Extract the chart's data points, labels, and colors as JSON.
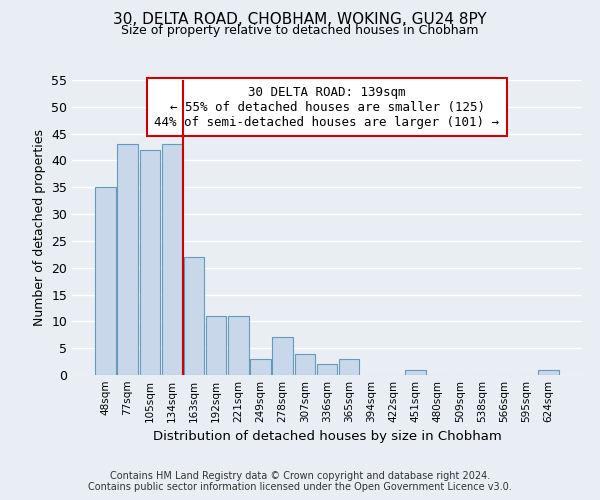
{
  "title": "30, DELTA ROAD, CHOBHAM, WOKING, GU24 8PY",
  "subtitle": "Size of property relative to detached houses in Chobham",
  "xlabel": "Distribution of detached houses by size in Chobham",
  "ylabel": "Number of detached properties",
  "bin_labels": [
    "48sqm",
    "77sqm",
    "105sqm",
    "134sqm",
    "163sqm",
    "192sqm",
    "221sqm",
    "249sqm",
    "278sqm",
    "307sqm",
    "336sqm",
    "365sqm",
    "394sqm",
    "422sqm",
    "451sqm",
    "480sqm",
    "509sqm",
    "538sqm",
    "566sqm",
    "595sqm",
    "624sqm"
  ],
  "bar_heights": [
    35,
    43,
    42,
    43,
    22,
    11,
    11,
    3,
    7,
    4,
    2,
    3,
    0,
    0,
    1,
    0,
    0,
    0,
    0,
    0,
    1
  ],
  "bar_color": "#c8d8ea",
  "bar_edge_color": "#6699bb",
  "vline_x": 3.5,
  "vline_color": "#cc0000",
  "ylim": [
    0,
    55
  ],
  "annotation_title": "30 DELTA ROAD: 139sqm",
  "annotation_line1": "← 55% of detached houses are smaller (125)",
  "annotation_line2": "44% of semi-detached houses are larger (101) →",
  "annotation_box_color": "#ffffff",
  "annotation_box_edge": "#cc0000",
  "footer_line1": "Contains HM Land Registry data © Crown copyright and database right 2024.",
  "footer_line2": "Contains public sector information licensed under the Open Government Licence v3.0.",
  "background_color": "#e8eef4",
  "grid_color": "#ffffff",
  "fig_width": 6.0,
  "fig_height": 5.0,
  "dpi": 100
}
